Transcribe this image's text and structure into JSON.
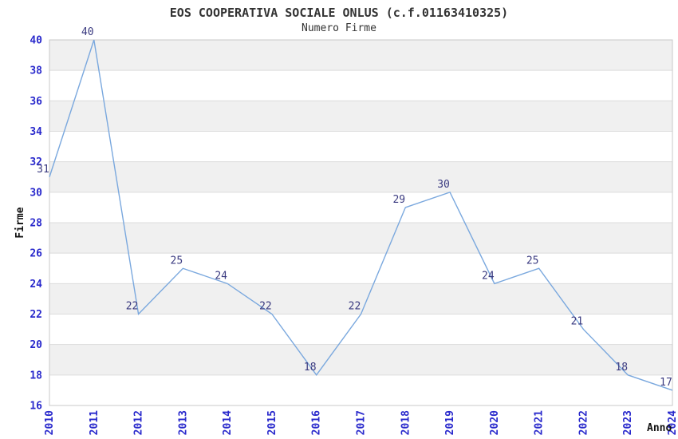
{
  "chart_data": {
    "type": "line",
    "title": "EOS COOPERATIVA SOCIALE ONLUS (c.f.01163410325)",
    "subtitle": "Numero Firme",
    "xlabel": "Anno",
    "ylabel": "Firme",
    "categories": [
      "2010",
      "2011",
      "2012",
      "2013",
      "2014",
      "2015",
      "2016",
      "2017",
      "2018",
      "2019",
      "2020",
      "2021",
      "2022",
      "2023",
      "2024"
    ],
    "values": [
      31,
      40,
      22,
      25,
      24,
      22,
      18,
      22,
      29,
      30,
      24,
      25,
      21,
      18,
      17
    ],
    "ylim": [
      16,
      40
    ],
    "ytick_step": 2,
    "grid": "horizontal-bands",
    "legend": "none",
    "point_labels_visible": true,
    "colors": {
      "line": "#7aa8de",
      "tick_label": "#2929cc",
      "point_label": "#3a3a80",
      "band": "#f0f0f0",
      "grid_line": "#dcdcdc",
      "plot_border": "#c8c8c8",
      "title": "#333333"
    }
  }
}
